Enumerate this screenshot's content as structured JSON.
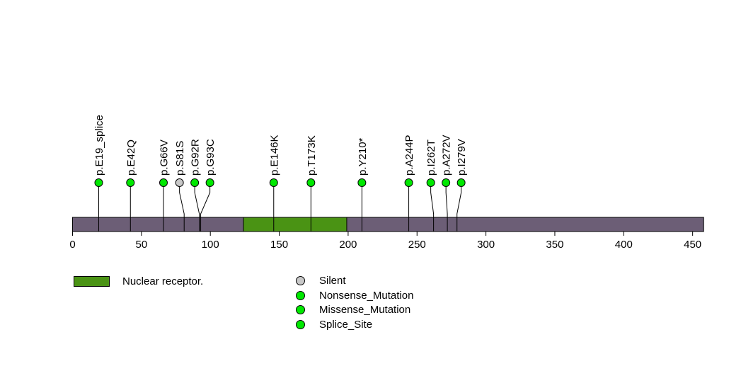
{
  "chart_data": {
    "type": "lollipop",
    "title": "",
    "xlabel": "",
    "axis": {
      "min": 0,
      "max": 450,
      "step": 50
    },
    "protein": {
      "length": 458,
      "color": "#6C5E76"
    },
    "domains": [
      {
        "name": "Nuclear receptor.",
        "start": 124,
        "end": 199,
        "color": "#4A9314"
      }
    ],
    "mutations": [
      {
        "label": "p.E19_splice",
        "position": 19,
        "type": "Splice_Site",
        "color": "#00E800"
      },
      {
        "label": "p.E42Q",
        "position": 42,
        "type": "Missense_Mutation",
        "color": "#00E800"
      },
      {
        "label": "p.G66V",
        "position": 66,
        "type": "Missense_Mutation",
        "color": "#00E800"
      },
      {
        "label": "p.S81S",
        "position": 81,
        "type": "Silent",
        "color": "#C8C8C8"
      },
      {
        "label": "p.G92R",
        "position": 92,
        "type": "Missense_Mutation",
        "color": "#00E800"
      },
      {
        "label": "p.G93C",
        "position": 93,
        "type": "Missense_Mutation",
        "color": "#00E800"
      },
      {
        "label": "p.E146K",
        "position": 146,
        "type": "Missense_Mutation",
        "color": "#00E800"
      },
      {
        "label": "p.T173K",
        "position": 173,
        "type": "Missense_Mutation",
        "color": "#00E800"
      },
      {
        "label": "p.Y210*",
        "position": 210,
        "type": "Nonsense_Mutation",
        "color": "#00E800"
      },
      {
        "label": "p.A244P",
        "position": 244,
        "type": "Missense_Mutation",
        "color": "#00E800"
      },
      {
        "label": "p.I262T",
        "position": 262,
        "type": "Missense_Mutation",
        "color": "#00E800"
      },
      {
        "label": "p.A272V",
        "position": 272,
        "type": "Missense_Mutation",
        "color": "#00E800"
      },
      {
        "label": "p.I279V",
        "position": 279,
        "type": "Missense_Mutation",
        "color": "#00E800"
      }
    ],
    "legend": {
      "domain": {
        "label": "Nuclear receptor.",
        "color": "#4A9314"
      },
      "mutation_types": [
        {
          "label": "Silent",
          "color": "#C8C8C8"
        },
        {
          "label": "Nonsense_Mutation",
          "color": "#00E800"
        },
        {
          "label": "Missense_Mutation",
          "color": "#00E800"
        },
        {
          "label": "Splice_Site",
          "color": "#00E800"
        }
      ]
    }
  }
}
